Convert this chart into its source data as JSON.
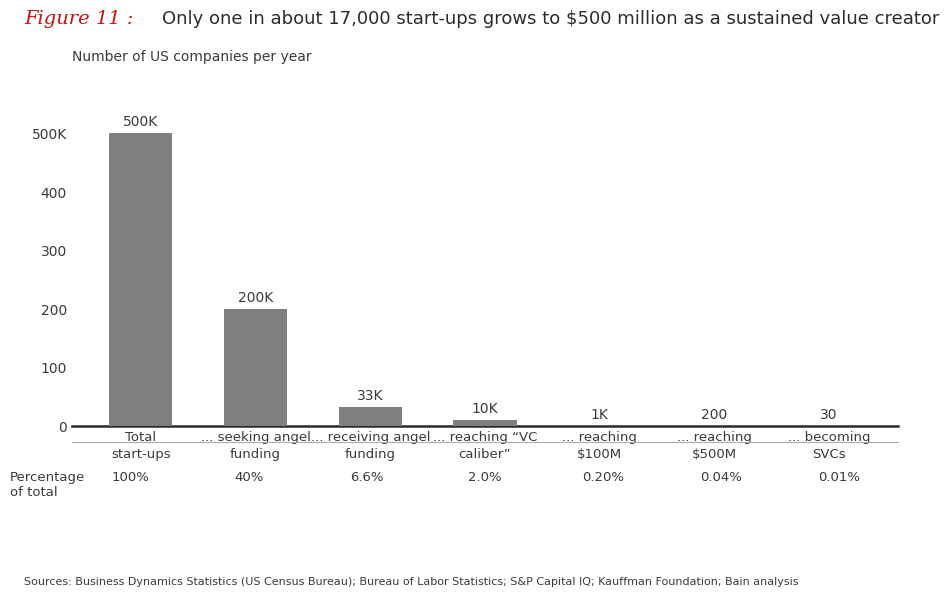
{
  "categories": [
    "Total\nstart-ups",
    "... seeking angel\nfunding",
    "... receiving angel\nfunding",
    "... reaching “VC\ncaliber”",
    "... reaching\n$100M",
    "... reaching\n$500M",
    "... becoming\nSVCs"
  ],
  "values": [
    500000,
    200000,
    33000,
    10000,
    1000,
    200,
    30
  ],
  "bar_labels": [
    "500K",
    "200K",
    "33K",
    "10K",
    "1K",
    "200",
    "30"
  ],
  "percentages": [
    "100%",
    "40%",
    "6.6%",
    "2.0%",
    "0.20%",
    "0.04%",
    "0.01%"
  ],
  "bar_color": "#7f7f7f",
  "background_color": "#ffffff",
  "title_red": "Figure 11 :",
  "title_black": "  Only one in about 17,000 start-ups grows to $500 million as a sustained value creator",
  "ylabel": "Number of US companies per year",
  "sources": "Sources: Business Dynamics Statistics (US Census Bureau); Bureau of Labor Statistics; S&P Capital IQ; Kauffman Foundation; Bain analysis",
  "percentage_label": "Percentage\nof total",
  "ylim": [
    0,
    560000
  ],
  "yticks": [
    0,
    100000,
    200000,
    300000,
    400000,
    500000
  ],
  "ytick_labels": [
    "0",
    "100",
    "200",
    "300",
    "400",
    "500K"
  ]
}
